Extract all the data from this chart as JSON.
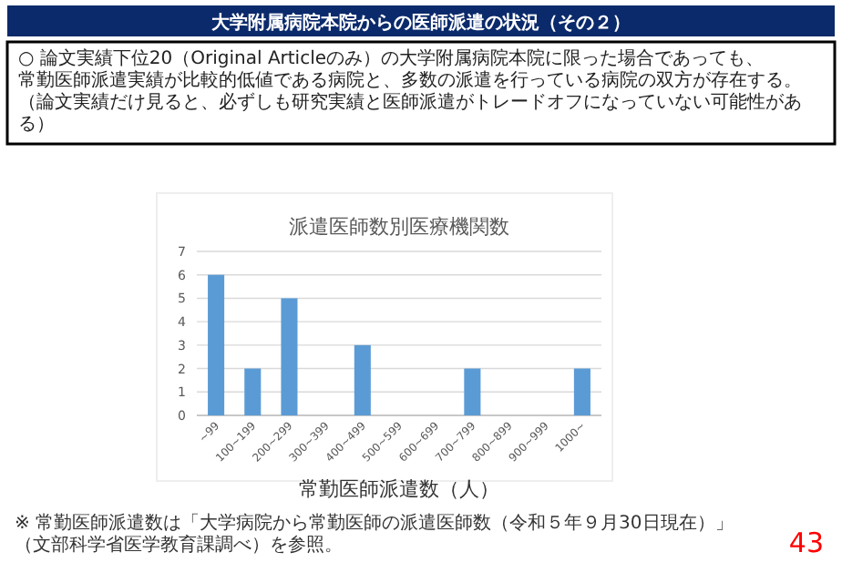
{
  "chart_data": {
    "type": "bar",
    "title": "派遣医師数別医療機関数",
    "xlabel": "常勤医師派遣数（人）",
    "categories": [
      "~99",
      "100~199",
      "200~299",
      "300~399",
      "400~499",
      "500~599",
      "600~699",
      "700~799",
      "800~899",
      "900~999",
      "1000~"
    ],
    "values": [
      6,
      2,
      5,
      0,
      3,
      0,
      0,
      2,
      0,
      0,
      2
    ],
    "color": "#5b9bd5",
    "ylim": [
      0,
      7
    ],
    "yticks": [
      0,
      1,
      2,
      3,
      4,
      5,
      6,
      7
    ],
    "grid": "y",
    "annotations": [
      "大学附属病院本院からの医師派遣の状況（その２）",
      "○ 論文実績下位20（Original Articleのみ）の大学附属病院本院に限った場合であっても、常勤医師派遣実績が比較的低値である病院と、多数の派遣を行っている病院の双方が存在する。（論文実績だけ見ると、必ずしも研究実績と医師派遣がトレードオフになっていない可能性がある）",
      "※ 常勤医師派遣数は「大学病院から常勤医師の派遣医師数（令和５年９月30日現在）」（文部科学省医学教育課調べ）を参照。",
      "43"
    ]
  }
}
